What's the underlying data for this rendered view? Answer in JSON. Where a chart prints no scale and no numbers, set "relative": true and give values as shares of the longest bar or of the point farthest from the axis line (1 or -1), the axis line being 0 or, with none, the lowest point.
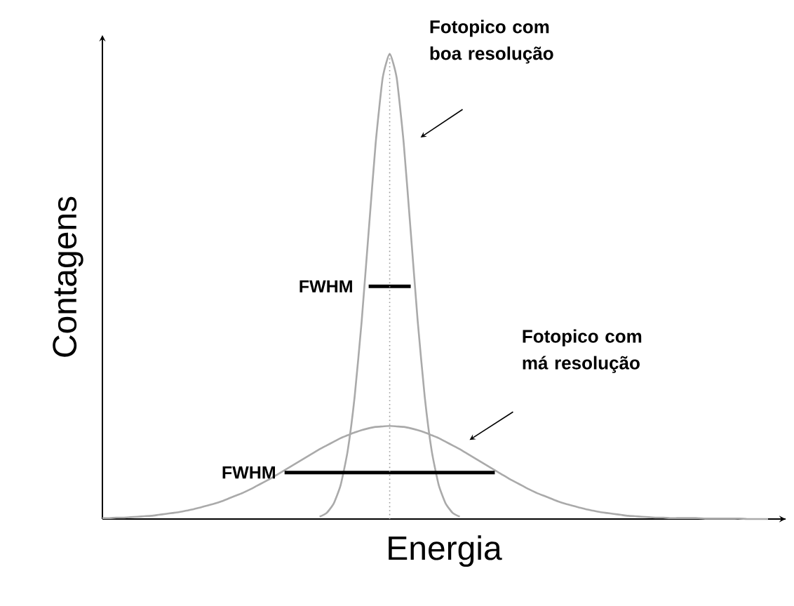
{
  "chart_data": {
    "type": "line",
    "relative": true,
    "xlabel": "Energia",
    "ylabel": "Contagens",
    "categories": [
      null,
      null,
      null,
      null,
      null,
      null,
      null,
      null,
      null,
      null,
      null,
      null,
      null,
      null,
      null,
      null,
      null,
      null,
      null,
      null,
      null,
      null,
      null,
      null,
      null,
      null,
      null,
      null,
      null,
      null,
      null,
      null,
      null,
      null,
      null,
      null,
      null,
      null,
      null,
      null,
      null,
      null,
      null,
      null,
      null,
      null,
      null,
      null,
      null,
      null,
      null,
      null,
      null,
      null,
      null,
      null,
      null,
      null,
      null,
      null,
      null,
      null,
      null,
      null,
      null,
      null,
      null,
      null,
      null,
      null,
      null,
      null,
      null,
      null,
      null,
      null,
      null,
      null,
      null,
      null,
      null,
      null,
      null,
      null,
      null,
      null,
      null,
      null,
      null,
      null,
      null,
      null,
      null,
      null,
      null,
      null
    ],
    "series": [
      {
        "color": "#aaaaaa",
        "values": [
          null,
          null,
          null,
          null,
          null,
          null,
          null,
          null,
          null,
          null,
          null,
          null,
          null,
          null,
          null,
          null,
          null,
          null,
          null,
          null,
          null,
          null,
          null,
          null,
          null,
          null,
          null,
          null,
          null,
          null,
          null,
          0.005,
          0.013,
          0.033,
          0.073,
          0.146,
          0.263,
          0.425,
          0.618,
          0.808,
          0.948,
          1,
          0.948,
          0.808,
          0.618,
          0.425,
          0.263,
          0.146,
          0.073,
          0.033,
          0.013,
          0.005,
          null,
          null,
          null,
          null,
          null,
          null,
          null,
          null,
          null,
          null,
          null,
          null,
          null,
          null,
          null,
          null,
          null,
          null,
          null,
          null,
          null,
          null,
          null,
          null,
          null,
          null,
          null,
          null,
          null,
          null,
          null,
          null,
          null,
          null,
          null,
          null,
          null,
          null,
          null,
          null,
          null,
          null,
          null,
          null
        ]
      },
      {
        "color": "#aaaaaa",
        "values": [
          0.002,
          0.002,
          0.003,
          0.003,
          0.004,
          0.005,
          0.006,
          0.007,
          0.009,
          0.011,
          0.013,
          0.015,
          0.018,
          0.021,
          0.025,
          0.029,
          0.033,
          0.038,
          0.044,
          0.05,
          0.056,
          0.063,
          0.071,
          0.079,
          0.087,
          0.096,
          0.105,
          0.114,
          0.123,
          0.132,
          0.141,
          0.15,
          0.158,
          0.166,
          0.174,
          0.18,
          0.186,
          0.191,
          0.195,
          0.198,
          0.199,
          0.2,
          0.199,
          0.198,
          0.195,
          0.191,
          0.186,
          0.18,
          0.174,
          0.166,
          0.158,
          0.15,
          0.141,
          0.132,
          0.123,
          0.114,
          0.105,
          0.096,
          0.087,
          0.079,
          0.071,
          0.063,
          0.056,
          0.05,
          0.044,
          0.038,
          0.033,
          0.029,
          0.025,
          0.021,
          0.018,
          0.015,
          0.013,
          0.011,
          0.009,
          0.007,
          0.006,
          0.005,
          0.004,
          0.003,
          0.003,
          0.002,
          0.002,
          0.002,
          0.002,
          0.002,
          0.001,
          0.001,
          0.001,
          0.001,
          0.001,
          0.001,
          0,
          0,
          0,
          0
        ]
      },
      {
        "color": "#000000",
        "values": [
          null,
          null,
          null,
          null,
          null,
          null,
          null,
          null,
          null,
          null,
          null,
          null,
          null,
          null,
          null,
          null,
          null,
          null,
          null,
          null,
          null,
          null,
          null,
          null,
          null,
          null,
          null,
          null,
          null,
          null,
          null,
          null,
          null,
          null,
          null,
          null,
          null,
          null,
          0.5,
          0.5,
          0.5,
          0.5,
          0.5,
          0.5,
          0.5,
          null,
          null,
          null,
          null,
          null,
          null,
          null,
          null,
          null,
          null,
          null,
          null,
          null,
          null,
          null,
          null,
          null,
          null,
          null,
          null,
          null,
          null,
          null,
          null,
          null,
          null,
          null,
          null,
          null,
          null,
          null,
          null,
          null,
          null,
          null,
          null,
          null,
          null,
          null,
          null,
          null,
          null,
          null,
          null,
          null,
          null,
          null,
          null,
          null,
          null,
          null
        ]
      },
      {
        "color": "#000000",
        "values": [
          null,
          null,
          null,
          null,
          null,
          null,
          null,
          null,
          null,
          null,
          null,
          null,
          null,
          null,
          null,
          null,
          null,
          null,
          null,
          null,
          null,
          null,
          null,
          null,
          null,
          null,
          0.1,
          0.1,
          0.1,
          0.1,
          0.1,
          0.1,
          0.1,
          0.1,
          0.1,
          0.1,
          0.1,
          0.1,
          0.1,
          0.1,
          0.1,
          0.1,
          0.1,
          0.1,
          0.1,
          0.1,
          0.1,
          0.1,
          0.1,
          0.1,
          0.1,
          0.1,
          0.1,
          0.1,
          0.1,
          0.1,
          0.1,
          null,
          null,
          null,
          null,
          null,
          null,
          null,
          null,
          null,
          null,
          null,
          null,
          null,
          null,
          null,
          null,
          null,
          null,
          null,
          null,
          null,
          null,
          null,
          null,
          null,
          null,
          null,
          null,
          null,
          null,
          null,
          null,
          null,
          null,
          null,
          null,
          null,
          null,
          null
        ]
      }
    ],
    "annotations": [
      "FWHM",
      "FWHM",
      "Fotopico com boa resolução",
      "Fotopico com má resolução"
    ]
  }
}
